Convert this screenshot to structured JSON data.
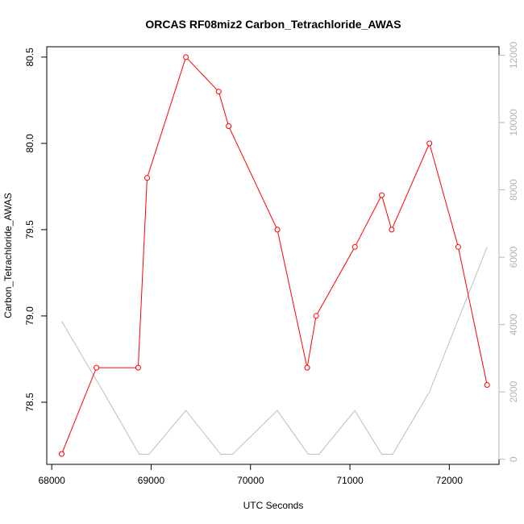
{
  "chart_data": {
    "type": "line",
    "title": "ORCAS RF08miz2 Carbon_Tetrachloride_AWAS",
    "xlabel": "UTC Seconds",
    "ylabel": "Carbon_Tetrachloride_AWAS",
    "xlim": [
      67950,
      72500
    ],
    "ylim": [
      78.14,
      80.56
    ],
    "y2lim": [
      -150,
      12250
    ],
    "x_ticks": [
      68000,
      69000,
      70000,
      71000,
      72000
    ],
    "x_tick_labels": [
      "68000",
      "69000",
      "70000",
      "71000",
      "72000"
    ],
    "y_ticks": [
      78.5,
      79.0,
      79.5,
      80.0,
      80.5
    ],
    "y_tick_labels": [
      "78.5",
      "79.0",
      "79.5",
      "80.0",
      "80.5"
    ],
    "y2_ticks": [
      0,
      2000,
      4000,
      6000,
      8000,
      10000,
      12000
    ],
    "y2_tick_labels": [
      "0",
      "2000",
      "4000",
      "6000",
      "8000",
      "10000",
      "12000"
    ],
    "grid": false,
    "series": [
      {
        "color": "#ff0000",
        "axis": "left",
        "style": "line-with-open-circles",
        "x": [
          68100,
          68450,
          68870,
          68960,
          69350,
          69680,
          69780,
          70270,
          70570,
          70660,
          71050,
          71320,
          71420,
          71800,
          72090,
          72380
        ],
        "y": [
          78.2,
          78.7,
          78.7,
          79.8,
          80.5,
          80.3,
          80.1,
          79.5,
          78.7,
          79.0,
          79.4,
          79.7,
          79.5,
          80.0,
          79.4,
          78.6
        ]
      },
      {
        "color": "#bebebe",
        "axis": "right",
        "style": "line",
        "x": [
          68100,
          68500,
          68880,
          68980,
          69350,
          69700,
          69820,
          70270,
          70580,
          70690,
          71050,
          71320,
          71430,
          71800,
          72380
        ],
        "y": [
          4100,
          2100,
          150,
          150,
          1450,
          150,
          150,
          1450,
          150,
          150,
          1450,
          150,
          150,
          2000,
          6300
        ]
      }
    ],
    "colors": {
      "primary": "#ff0000",
      "secondary": "#bebebe",
      "right_axis": "#b3b3b3",
      "axis": "#000000"
    }
  }
}
